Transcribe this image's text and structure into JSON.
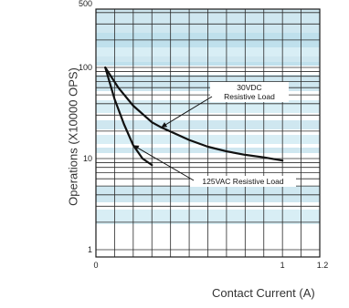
{
  "chart_data": {
    "type": "line",
    "xlabel": "Contact Current (A)",
    "ylabel": "Operations (X10000 OPS)",
    "x_ticks": [
      "0",
      "1",
      "1.2"
    ],
    "y_ticks": [
      "1",
      "10",
      "100",
      "500"
    ],
    "xlim": [
      0,
      1.2
    ],
    "ylim": [
      1,
      500
    ],
    "y_scale": "log",
    "grid": true,
    "series": [
      {
        "name": "30VDC Resistive Load",
        "x": [
          0.05,
          0.12,
          0.2,
          0.3,
          0.35,
          0.5,
          0.6,
          0.7,
          0.8,
          0.9,
          1.0
        ],
        "y": [
          100,
          60,
          38,
          25,
          22,
          16,
          13.5,
          12,
          11,
          10.3,
          9.5
        ]
      },
      {
        "name": "125VAC Resistive Load",
        "x": [
          0.05,
          0.1,
          0.15,
          0.2,
          0.25,
          0.3
        ],
        "y": [
          100,
          45,
          24,
          14,
          10,
          8.5
        ]
      }
    ],
    "annotations": [
      {
        "lines": [
          "30VDC",
          "Resistive Load"
        ],
        "series": 0
      },
      {
        "lines": [
          "125VAC Resistive Load"
        ],
        "series": 1
      }
    ]
  }
}
